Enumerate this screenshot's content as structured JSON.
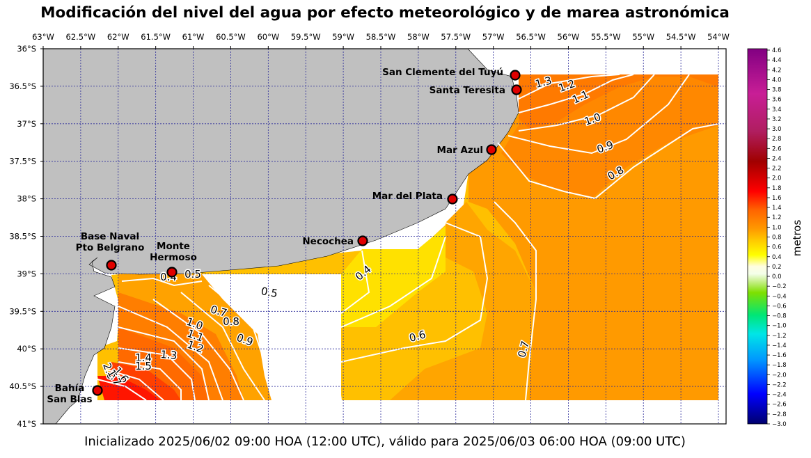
{
  "title": "Modificación del nivel del agua por efecto meteorológico y de marea astronómica",
  "footer": "Inicializado 2025/06/02 09:00 HOA (12:00 UTC), válido para 2025/06/03 06:00 HOA (09:00 UTC)",
  "map": {
    "lon_ticks": [
      "63°W",
      "62.5°W",
      "62°W",
      "61.5°W",
      "61°W",
      "60.5°W",
      "60°W",
      "59.5°W",
      "59°W",
      "58.5°W",
      "58°W",
      "57.5°W",
      "57°W",
      "56.5°W",
      "56°W",
      "55.5°W",
      "55°W",
      "54.5°W",
      "54°W"
    ],
    "lat_ticks": [
      "36°S",
      "36.5°S",
      "37°S",
      "37.5°S",
      "38°S",
      "38.5°S",
      "39°S",
      "39.5°S",
      "40°S",
      "40.5°S",
      "41°S"
    ],
    "land_color": "#c0c0c0",
    "grid_color": "#2a2a9a",
    "stations": [
      {
        "name": "San Clemente del Tuyú",
        "lines": [
          "San Clemente del Tuyú"
        ]
      },
      {
        "name": "Santa Teresita",
        "lines": [
          "Santa Teresita"
        ]
      },
      {
        "name": "Mar Azul",
        "lines": [
          "Mar Azul"
        ]
      },
      {
        "name": "Mar del Plata",
        "lines": [
          "Mar del Plata"
        ]
      },
      {
        "name": "Necochea",
        "lines": [
          "Necochea"
        ]
      },
      {
        "name": "Monte Hermoso",
        "lines": [
          "Monte",
          "Hermoso"
        ]
      },
      {
        "name": "Base Naval Pto Belgrano",
        "lines": [
          "Base Naval",
          "Pto Belgrano"
        ]
      },
      {
        "name": "Bahía San Blas",
        "lines": [
          "Bahía",
          "San Blas"
        ]
      }
    ],
    "contour_labels": [
      "1.3",
      "1.2",
      "1.1",
      "1.0",
      "0.9",
      "0.8",
      "0.4",
      "0.5",
      "0.4",
      "0.5",
      "0.7",
      "0.8",
      "0.9",
      "0.6",
      "0.7",
      "1.0",
      "1.1",
      "1.2",
      "1.3",
      "1.4",
      "1.5",
      "2.0",
      "1.6",
      "1.7"
    ]
  },
  "colorbar": {
    "label": "metros",
    "ticks": [
      "4.6",
      "4.4",
      "4.2",
      "4.0",
      "3.8",
      "3.6",
      "3.4",
      "3.2",
      "3.0",
      "2.8",
      "2.6",
      "2.4",
      "2.2",
      "2.0",
      "1.8",
      "1.6",
      "1.4",
      "1.2",
      "1.0",
      "0.8",
      "0.6",
      "0.4",
      "0.2",
      "0.0",
      "−0.2",
      "−0.4",
      "−0.6",
      "−0.8",
      "−1.0",
      "−1.2",
      "−1.4",
      "−1.6",
      "−1.8",
      "−2.0",
      "−2.2",
      "−2.4",
      "−2.6",
      "−2.8",
      "−3.0"
    ],
    "min": -3.0,
    "max": 4.6
  }
}
